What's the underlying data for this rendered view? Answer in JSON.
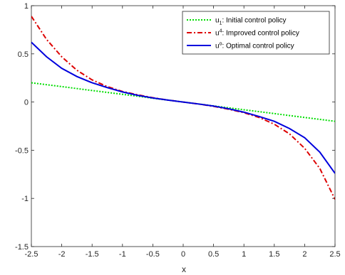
{
  "chart_data": {
    "type": "line",
    "xlabel": "x",
    "ylabel": "",
    "xlim": [
      -2.5,
      2.5
    ],
    "ylim": [
      -1.5,
      1
    ],
    "xticks": [
      -2.5,
      -2,
      -1.5,
      -1,
      -0.5,
      0,
      0.5,
      1,
      1.5,
      2,
      2.5
    ],
    "yticks": [
      -1.5,
      -1,
      -0.5,
      0,
      0.5,
      1
    ],
    "grid": false,
    "legend_position": "top-right",
    "x": [
      -2.5,
      -2.25,
      -2,
      -1.75,
      -1.5,
      -1.25,
      -1,
      -0.75,
      -0.5,
      -0.25,
      0,
      0.25,
      0.5,
      0.75,
      1,
      1.25,
      1.5,
      1.75,
      2,
      2.25,
      2.5
    ],
    "series": [
      {
        "name": "u_1: Initial control policy",
        "legend_base": "u",
        "legend_sub": "1",
        "legend_sup": "",
        "legend_rest": ": Initial control policy",
        "color": "#00dd00",
        "style": "dotted",
        "values": [
          0.2,
          0.18,
          0.16,
          0.14,
          0.12,
          0.1,
          0.08,
          0.06,
          0.04,
          0.02,
          0,
          -0.02,
          -0.04,
          -0.06,
          -0.08,
          -0.1,
          -0.12,
          -0.14,
          -0.16,
          -0.18,
          -0.2
        ]
      },
      {
        "name": "u^4: Improved control policy",
        "legend_base": "u",
        "legend_sub": "",
        "legend_sup": "4",
        "legend_rest": ": Improved control policy",
        "color": "#dd0000",
        "style": "dashdot",
        "values": [
          0.89,
          0.65,
          0.47,
          0.33,
          0.23,
          0.16,
          0.11,
          0.075,
          0.045,
          0.02,
          0,
          -0.02,
          -0.045,
          -0.075,
          -0.11,
          -0.16,
          -0.23,
          -0.33,
          -0.48,
          -0.69,
          -1.01
        ]
      },
      {
        "name": "u^o: Optimal control policy",
        "legend_base": "u",
        "legend_sub": "",
        "legend_sup": "o",
        "legend_rest": ": Optimal control policy",
        "color": "#0000dd",
        "style": "solid",
        "values": [
          0.62,
          0.47,
          0.35,
          0.265,
          0.2,
          0.15,
          0.105,
          0.07,
          0.042,
          0.02,
          0,
          -0.02,
          -0.042,
          -0.07,
          -0.105,
          -0.15,
          -0.2,
          -0.275,
          -0.37,
          -0.52,
          -0.74
        ]
      }
    ]
  }
}
